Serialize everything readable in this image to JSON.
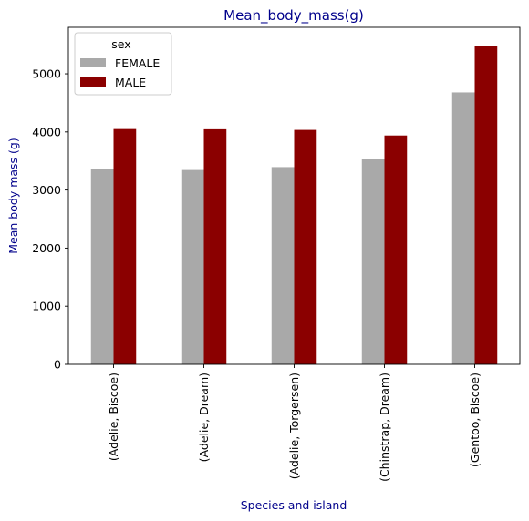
{
  "chart_data": {
    "type": "bar",
    "title": "Mean_body_mass(g)",
    "xlabel": "Species and island",
    "ylabel": "Mean body mass (g)",
    "categories": [
      "(Adelie, Biscoe)",
      "(Adelie, Dream)",
      "(Adelie, Torgersen)",
      "(Chinstrap, Dream)",
      "(Gentoo, Biscoe)"
    ],
    "series": [
      {
        "name": "FEMALE",
        "color": "#a9a9a9",
        "values": [
          3370,
          3345,
          3395,
          3527,
          4680
        ]
      },
      {
        "name": "MALE",
        "color": "#8b0000",
        "values": [
          4050,
          4046,
          4035,
          3939,
          5485
        ]
      }
    ],
    "ylim": [
      0,
      5800
    ],
    "yticks": [
      0,
      1000,
      2000,
      3000,
      4000,
      5000
    ],
    "legend": {
      "title": "sex",
      "placement": "top-left"
    },
    "grid": false,
    "label_color": "#00008b"
  }
}
